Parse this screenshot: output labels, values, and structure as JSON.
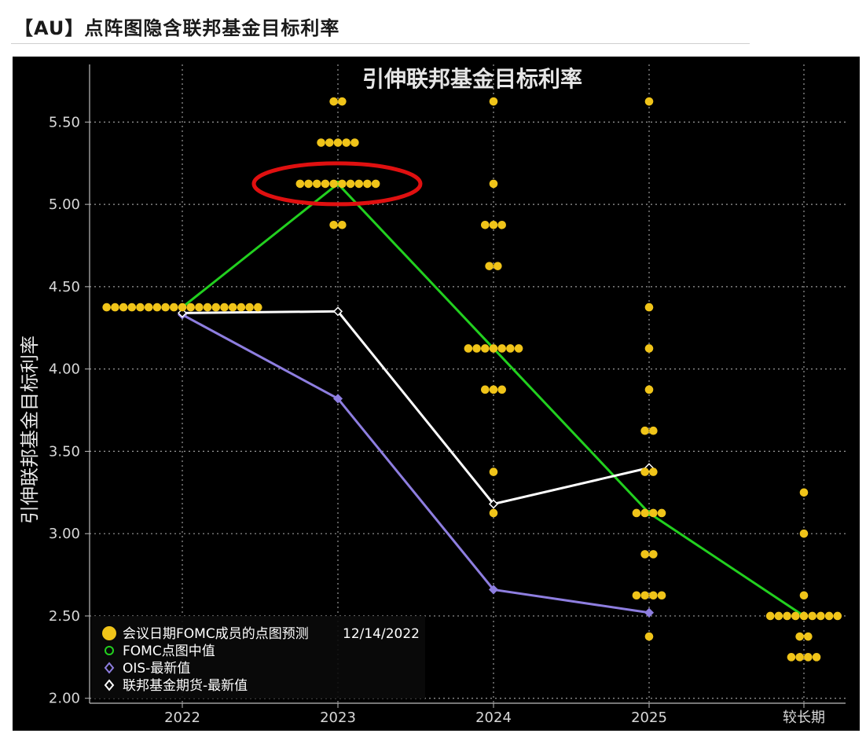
{
  "page": {
    "title": "【AU】点阵图隐含联邦基金目标利率"
  },
  "chart_data": {
    "type": "scatter",
    "title": "引伸联邦基金目标利率",
    "xlabel": "",
    "ylabel": "引伸联邦基金目标利率",
    "categories": [
      "2022",
      "2023",
      "2024",
      "2025",
      "较长期"
    ],
    "ylim": [
      1.97,
      5.85
    ],
    "yticks": [
      "5.50",
      "5.00",
      "4.50",
      "4.00",
      "3.50",
      "3.00",
      "2.50",
      "2.00"
    ],
    "grid": true,
    "legend_position": "bottom-left",
    "dot_plot": {
      "name": "会议日期FOMC成员的点图预测",
      "date": "12/14/2022",
      "color": "#f0c419",
      "groups": [
        {
          "category": "2022",
          "rate": 4.375,
          "count": 19
        },
        {
          "category": "2023",
          "rate": 5.625,
          "count": 2
        },
        {
          "category": "2023",
          "rate": 5.375,
          "count": 5
        },
        {
          "category": "2023",
          "rate": 5.125,
          "count": 10
        },
        {
          "category": "2023",
          "rate": 4.875,
          "count": 2
        },
        {
          "category": "2024",
          "rate": 5.625,
          "count": 1
        },
        {
          "category": "2024",
          "rate": 5.125,
          "count": 1
        },
        {
          "category": "2024",
          "rate": 4.875,
          "count": 3
        },
        {
          "category": "2024",
          "rate": 4.625,
          "count": 2
        },
        {
          "category": "2024",
          "rate": 4.125,
          "count": 7
        },
        {
          "category": "2024",
          "rate": 3.875,
          "count": 3
        },
        {
          "category": "2024",
          "rate": 3.375,
          "count": 1
        },
        {
          "category": "2024",
          "rate": 3.125,
          "count": 1
        },
        {
          "category": "2025",
          "rate": 5.625,
          "count": 1
        },
        {
          "category": "2025",
          "rate": 4.375,
          "count": 1
        },
        {
          "category": "2025",
          "rate": 4.125,
          "count": 1
        },
        {
          "category": "2025",
          "rate": 3.875,
          "count": 1
        },
        {
          "category": "2025",
          "rate": 3.625,
          "count": 2
        },
        {
          "category": "2025",
          "rate": 3.375,
          "count": 2
        },
        {
          "category": "2025",
          "rate": 3.125,
          "count": 4
        },
        {
          "category": "2025",
          "rate": 2.875,
          "count": 2
        },
        {
          "category": "2025",
          "rate": 2.625,
          "count": 4
        },
        {
          "category": "2025",
          "rate": 2.375,
          "count": 1
        },
        {
          "category": "较长期",
          "rate": 3.25,
          "count": 1
        },
        {
          "category": "较长期",
          "rate": 3.0,
          "count": 1
        },
        {
          "category": "较长期",
          "rate": 2.625,
          "count": 1
        },
        {
          "category": "较长期",
          "rate": 2.5,
          "count": 9
        },
        {
          "category": "较长期",
          "rate": 2.375,
          "count": 2
        },
        {
          "category": "较长期",
          "rate": 2.25,
          "count": 4
        }
      ]
    },
    "series": [
      {
        "name": "FOMC点图中值",
        "color": "#22d01f",
        "marker": "circle",
        "values": [
          4.375,
          5.125,
          4.125,
          3.125,
          2.5
        ]
      },
      {
        "name": "OIS-最新值",
        "color": "#8e7ee0",
        "marker": "diamond",
        "values": [
          4.33,
          3.82,
          2.66,
          2.52,
          null
        ]
      },
      {
        "name": "联邦基金期货-最新值",
        "color": "#ffffff",
        "marker": "diamond",
        "values": [
          4.34,
          4.35,
          3.18,
          3.4,
          null
        ]
      }
    ],
    "annotation": {
      "type": "ellipse",
      "color": "#e01010",
      "category": "2023",
      "rate": 5.125
    }
  }
}
